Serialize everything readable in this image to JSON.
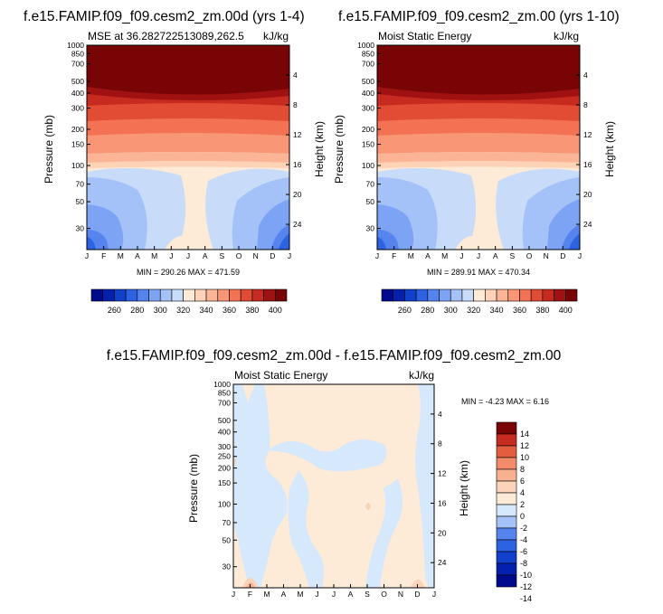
{
  "months": [
    "J",
    "F",
    "M",
    "A",
    "M",
    "J",
    "J",
    "A",
    "S",
    "O",
    "N",
    "D",
    "J"
  ],
  "pressure_ticks": [
    "30",
    "50",
    "70",
    "100",
    "150",
    "200",
    "300",
    "400",
    "500",
    "700",
    "850",
    "1000"
  ],
  "pressure_ticks_diff": [
    "30",
    "50",
    "70",
    "100",
    "150",
    "200",
    "250",
    "300",
    "400",
    "500",
    "700",
    "850",
    "1000"
  ],
  "height_ticks": [
    "24",
    "20",
    "16",
    "12",
    "8",
    "4"
  ],
  "ylabel": "Pressure (mb)",
  "ylabel_right": "Height (km)",
  "units": "kJ/kg",
  "colors": {
    "mse": [
      "#000a8c",
      "#0520ad",
      "#1040cc",
      "#2d63e3",
      "#5584ef",
      "#7da3f4",
      "#a4c2f7",
      "#c8dcfa",
      "#fdebd7",
      "#fdd2b6",
      "#fbb596",
      "#f89675",
      "#f37254",
      "#e24b34",
      "#c72a1e",
      "#a01212",
      "#780405"
    ],
    "diff": [
      "#000a8c",
      "#0520ad",
      "#1040cc",
      "#2d63e3",
      "#5584ef",
      "#a4c2f7",
      "#d6e8fb",
      "#fdebd7",
      "#fbd2ba",
      "#f8b091",
      "#f38b6a",
      "#e35d40",
      "#c62c1f",
      "#780405"
    ]
  },
  "charts": {
    "left": {
      "title": "f.e15.FAMIP.f09_f09.cesm2_zm.00d (yrs 1-4)",
      "subtitle": "MSE at 36.282722513089,262.5",
      "minmax": "MIN = 290.26  MAX = 471.59",
      "colorbar_labels": [
        "260",
        "280",
        "300",
        "320",
        "340",
        "360",
        "380",
        "400"
      ]
    },
    "right": {
      "title": "f.e15.FAMIP.f09_f09.cesm2_zm.00 (yrs 1-10)",
      "subtitle": "Moist Static Energy",
      "minmax": "MIN = 289.91  MAX = 470.34",
      "colorbar_labels": [
        "260",
        "280",
        "300",
        "320",
        "340",
        "360",
        "380",
        "400"
      ]
    },
    "diff": {
      "title": "f.e15.FAMIP.f09_f09.cesm2_zm.00d - f.e15.FAMIP.f09_f09.cesm2_zm.00",
      "subtitle": "Moist Static Energy",
      "minmax": "MIN =  -4.23  MAX =   6.16",
      "colorbar_labels": [
        "14",
        "12",
        "10",
        "8",
        "6",
        "4",
        "2",
        "0",
        "-2",
        "-4",
        "-6",
        "-8",
        "-10",
        "-12",
        "-14"
      ]
    }
  },
  "chart_data": [
    {
      "type": "heatmap",
      "title": "f.e15.FAMIP.f09_f09.cesm2_zm.00d (yrs 1-4)",
      "subtitle": "MSE at 36.282722513089,262.5",
      "units": "kJ/kg",
      "xlabel": "",
      "ylabel": "Pressure (mb)",
      "ylabel_right": "Height (km)",
      "x_categories": [
        "J",
        "F",
        "M",
        "A",
        "M",
        "J",
        "J",
        "A",
        "S",
        "O",
        "N",
        "D",
        "J"
      ],
      "y_log_scale": true,
      "ylim_mb": [
        1000,
        20
      ],
      "contour_levels": [
        250,
        260,
        270,
        280,
        290,
        300,
        310,
        320,
        330,
        340,
        350,
        360,
        370,
        380,
        390,
        400
      ],
      "min": 290.26,
      "max": 471.59
    },
    {
      "type": "heatmap",
      "title": "f.e15.FAMIP.f09_f09.cesm2_zm.00 (yrs 1-10)",
      "subtitle": "Moist Static Energy",
      "units": "kJ/kg",
      "ylabel": "Pressure (mb)",
      "ylabel_right": "Height (km)",
      "x_categories": [
        "J",
        "F",
        "M",
        "A",
        "M",
        "J",
        "J",
        "A",
        "S",
        "O",
        "N",
        "D",
        "J"
      ],
      "y_log_scale": true,
      "ylim_mb": [
        1000,
        20
      ],
      "contour_levels": [
        250,
        260,
        270,
        280,
        290,
        300,
        310,
        320,
        330,
        340,
        350,
        360,
        370,
        380,
        390,
        400
      ],
      "min": 289.91,
      "max": 470.34
    },
    {
      "type": "heatmap",
      "title": "f.e15.FAMIP.f09_f09.cesm2_zm.00d - f.e15.FAMIP.f09_f09.cesm2_zm.00",
      "subtitle": "Moist Static Energy",
      "units": "kJ/kg",
      "ylabel": "Pressure (mb)",
      "ylabel_right": "Height (km)",
      "x_categories": [
        "J",
        "F",
        "M",
        "A",
        "M",
        "J",
        "J",
        "A",
        "S",
        "O",
        "N",
        "D",
        "J"
      ],
      "y_log_scale": true,
      "ylim_mb": [
        1000,
        20
      ],
      "contour_levels": [
        -14,
        -12,
        -10,
        -8,
        -6,
        -4,
        -2,
        0,
        2,
        4,
        6,
        8,
        10,
        12,
        14
      ],
      "min": -4.23,
      "max": 6.16
    }
  ]
}
